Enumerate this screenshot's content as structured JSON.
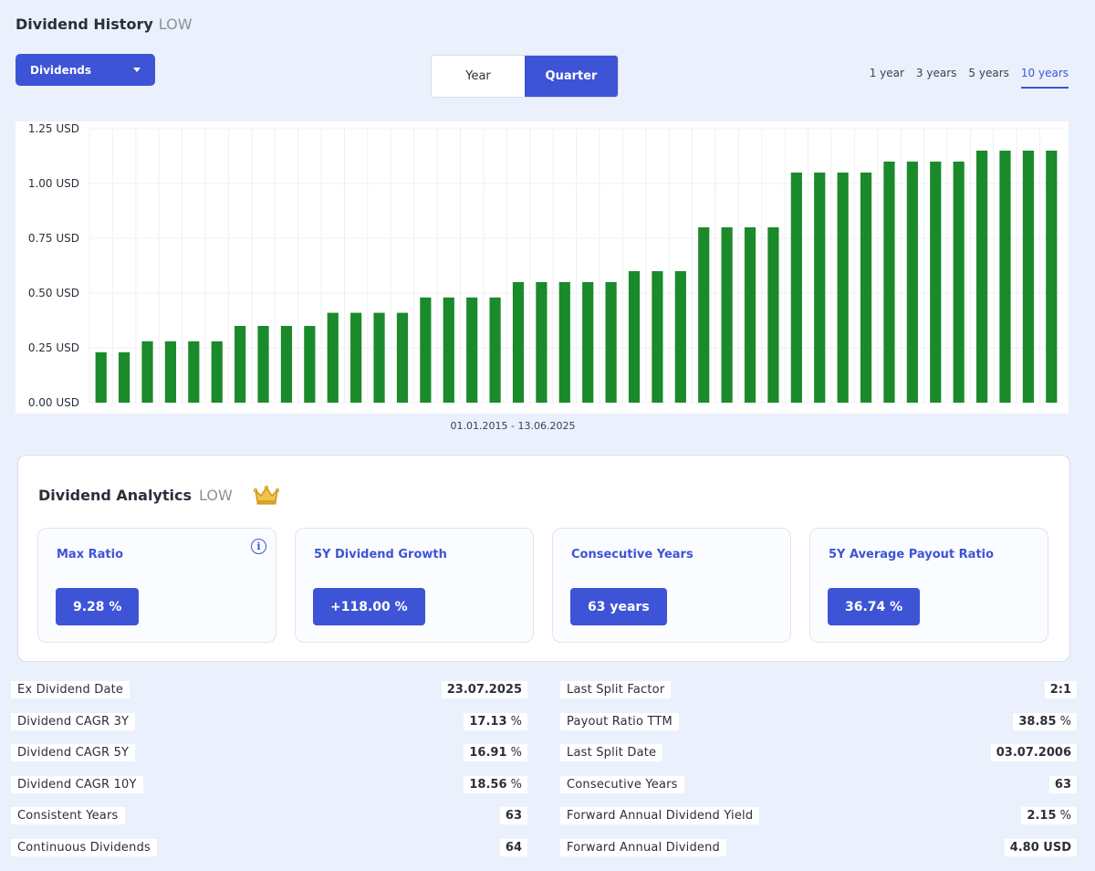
{
  "header": {
    "title": "Dividend History",
    "ticker": "LOW"
  },
  "select": {
    "value": "Dividends"
  },
  "period_toggle": {
    "options": [
      "Year",
      "Quarter"
    ],
    "active": "Quarter"
  },
  "range_tabs": {
    "options": [
      "1 year",
      "3 years",
      "5 years",
      "10 years"
    ],
    "active": "10 years"
  },
  "date_range": "01.01.2015 - 13.06.2025",
  "colors": {
    "accent": "#3d54d6",
    "bar": "#1a8a2a",
    "background": "#eaf1fd"
  },
  "chart_data": {
    "type": "bar",
    "ylim": [
      0,
      1.25
    ],
    "yticks": [
      "0.00 USD",
      "0.25 USD",
      "0.50 USD",
      "0.75 USD",
      "1.00 USD",
      "1.25 USD"
    ],
    "yticks_values": [
      0,
      0.25,
      0.5,
      0.75,
      1.0,
      1.25
    ],
    "grid": true,
    "values": [
      0.23,
      0.23,
      0.28,
      0.28,
      0.28,
      0.28,
      0.35,
      0.35,
      0.35,
      0.35,
      0.41,
      0.41,
      0.41,
      0.41,
      0.48,
      0.48,
      0.48,
      0.48,
      0.55,
      0.55,
      0.55,
      0.55,
      0.55,
      0.6,
      0.6,
      0.6,
      0.8,
      0.8,
      0.8,
      0.8,
      1.05,
      1.05,
      1.05,
      1.05,
      1.1,
      1.1,
      1.1,
      1.1,
      1.15,
      1.15,
      1.15,
      1.15
    ]
  },
  "analytics": {
    "title": "Dividend Analytics",
    "ticker": "LOW",
    "crown_icon": "crown-icon",
    "cards": [
      {
        "label": "Max Ratio",
        "value": "9.28 %",
        "info": "i"
      },
      {
        "label": "5Y Dividend Growth",
        "value": "+118.00 %"
      },
      {
        "label": "Consecutive Years",
        "value": "63 years"
      },
      {
        "label": "5Y Average Payout Ratio",
        "value": "36.74 %"
      }
    ]
  },
  "stats_left": [
    {
      "label": "Ex Dividend Date",
      "value": "23.07.2025",
      "unit": ""
    },
    {
      "label": "Dividend CAGR 3Y",
      "value": "17.13",
      "unit": " %"
    },
    {
      "label": "Dividend CAGR 5Y",
      "value": "16.91",
      "unit": " %"
    },
    {
      "label": "Dividend CAGR 10Y",
      "value": "18.56",
      "unit": " %"
    },
    {
      "label": "Consistent Years",
      "value": "63",
      "unit": ""
    },
    {
      "label": "Continuous Dividends",
      "value": "64",
      "unit": ""
    }
  ],
  "stats_right": [
    {
      "label": "Last Split Factor",
      "value": "2:1",
      "unit": ""
    },
    {
      "label": "Payout Ratio TTM",
      "value": "38.85",
      "unit": " %"
    },
    {
      "label": "Last Split Date",
      "value": "03.07.2006",
      "unit": ""
    },
    {
      "label": "Consecutive Years",
      "value": "63",
      "unit": ""
    },
    {
      "label": "Forward Annual Dividend Yield",
      "value": "2.15",
      "unit": " %"
    },
    {
      "label": "Forward Annual Dividend",
      "value": "4.80 USD",
      "unit": ""
    }
  ]
}
